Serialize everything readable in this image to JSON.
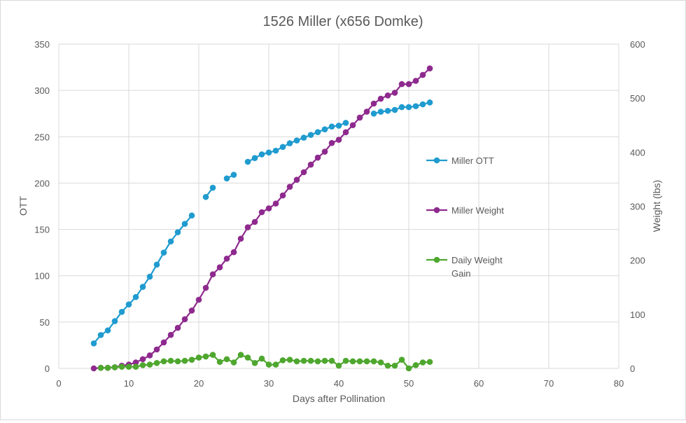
{
  "chart_data": {
    "type": "line",
    "title": "1526 Miller (x656 Domke)",
    "xlabel": "Days after Pollination",
    "ylabel": "OTT",
    "y2label": "Weight (lbs)",
    "xlim": [
      0,
      80
    ],
    "ylim": [
      0,
      350
    ],
    "y2lim": [
      0,
      600
    ],
    "xticks": [
      "0",
      "10",
      "20",
      "30",
      "40",
      "50",
      "60",
      "70",
      "80"
    ],
    "yticks": [
      "0",
      "50",
      "100",
      "150",
      "200",
      "250",
      "300",
      "350"
    ],
    "y2ticks": [
      "0",
      "100",
      "200",
      "300",
      "400",
      "500",
      "600"
    ],
    "grid": true,
    "legend_position": "right",
    "series": [
      {
        "name": "Miller OTT",
        "axis": "left",
        "color": "#1f9bcf",
        "points": [
          [
            5,
            27
          ],
          [
            6,
            36
          ],
          [
            7,
            41
          ],
          [
            8,
            51
          ],
          [
            9,
            61
          ],
          [
            10,
            69
          ],
          [
            11,
            77
          ],
          [
            12,
            88
          ],
          [
            13,
            99
          ],
          [
            14,
            112
          ],
          [
            15,
            125
          ],
          [
            16,
            137
          ],
          [
            17,
            147
          ],
          [
            18,
            156
          ],
          [
            19,
            165
          ],
          [
            20,
            null
          ],
          [
            21,
            185
          ],
          [
            22,
            195
          ],
          [
            23,
            null
          ],
          [
            24,
            205
          ],
          [
            25,
            209
          ],
          [
            26,
            null
          ],
          [
            27,
            223
          ],
          [
            28,
            227
          ],
          [
            29,
            231
          ],
          [
            30,
            233
          ],
          [
            31,
            235
          ],
          [
            32,
            239
          ],
          [
            33,
            243
          ],
          [
            34,
            246
          ],
          [
            35,
            249
          ],
          [
            36,
            252
          ],
          [
            37,
            255
          ],
          [
            38,
            258
          ],
          [
            39,
            261
          ],
          [
            40,
            262
          ],
          [
            41,
            265
          ],
          [
            42,
            null
          ],
          [
            43,
            null
          ],
          [
            44,
            null
          ],
          [
            45,
            275
          ],
          [
            46,
            277
          ],
          [
            47,
            278
          ],
          [
            48,
            279
          ],
          [
            49,
            282
          ],
          [
            50,
            282
          ],
          [
            51,
            283
          ],
          [
            52,
            285
          ],
          [
            53,
            287
          ]
        ]
      },
      {
        "name": "Miller Weight",
        "axis": "right",
        "color": "#8e2a8e",
        "points": [
          [
            5,
            0
          ],
          [
            6,
            1
          ],
          [
            7,
            1
          ],
          [
            8,
            2
          ],
          [
            9,
            5
          ],
          [
            10,
            7
          ],
          [
            11,
            11
          ],
          [
            12,
            17
          ],
          [
            13,
            24
          ],
          [
            14,
            35
          ],
          [
            15,
            48
          ],
          [
            16,
            62
          ],
          [
            17,
            75
          ],
          [
            18,
            91
          ],
          [
            19,
            107
          ],
          [
            20,
            127
          ],
          [
            21,
            149
          ],
          [
            22,
            174
          ],
          [
            23,
            187
          ],
          [
            24,
            203
          ],
          [
            25,
            215
          ],
          [
            26,
            240
          ],
          [
            27,
            261
          ],
          [
            28,
            271
          ],
          [
            29,
            289
          ],
          [
            30,
            296
          ],
          [
            31,
            305
          ],
          [
            32,
            320
          ],
          [
            33,
            336
          ],
          [
            34,
            349
          ],
          [
            35,
            363
          ],
          [
            36,
            377
          ],
          [
            37,
            390
          ],
          [
            38,
            401
          ],
          [
            39,
            417
          ],
          [
            40,
            423
          ],
          [
            41,
            437
          ],
          [
            42,
            450
          ],
          [
            43,
            464
          ],
          [
            44,
            475
          ],
          [
            45,
            490
          ],
          [
            46,
            499
          ],
          [
            47,
            505
          ],
          [
            48,
            510
          ],
          [
            49,
            526
          ],
          [
            50,
            526
          ],
          [
            51,
            532
          ],
          [
            52,
            543
          ],
          [
            53,
            555
          ]
        ]
      },
      {
        "name": "Daily Weight Gain",
        "axis": "right",
        "color": "#4ea72e",
        "points": [
          [
            6,
            1
          ],
          [
            7,
            1
          ],
          [
            8,
            2
          ],
          [
            9,
            3
          ],
          [
            10,
            3
          ],
          [
            11,
            3
          ],
          [
            12,
            6
          ],
          [
            13,
            7
          ],
          [
            14,
            10
          ],
          [
            15,
            13
          ],
          [
            16,
            14
          ],
          [
            17,
            13
          ],
          [
            18,
            14
          ],
          [
            19,
            16
          ],
          [
            20,
            20
          ],
          [
            21,
            22
          ],
          [
            22,
            25
          ],
          [
            23,
            12
          ],
          [
            24,
            17
          ],
          [
            25,
            11
          ],
          [
            26,
            25
          ],
          [
            27,
            20
          ],
          [
            28,
            10
          ],
          [
            29,
            18
          ],
          [
            30,
            7
          ],
          [
            31,
            7
          ],
          [
            32,
            15
          ],
          [
            33,
            16
          ],
          [
            34,
            13
          ],
          [
            35,
            14
          ],
          [
            36,
            14
          ],
          [
            37,
            13
          ],
          [
            38,
            14
          ],
          [
            39,
            14
          ],
          [
            40,
            5
          ],
          [
            41,
            14
          ],
          [
            42,
            13
          ],
          [
            43,
            13
          ],
          [
            44,
            13
          ],
          [
            45,
            13
          ],
          [
            46,
            11
          ],
          [
            47,
            5
          ],
          [
            48,
            5
          ],
          [
            49,
            16
          ],
          [
            50,
            0
          ],
          [
            51,
            6
          ],
          [
            52,
            11
          ],
          [
            53,
            12
          ]
        ]
      }
    ]
  },
  "legend": {
    "items": [
      {
        "label_lines": [
          "Miller OTT"
        ],
        "color": "#1f9bcf"
      },
      {
        "label_lines": [
          "Miller Weight"
        ],
        "color": "#8e2a8e"
      },
      {
        "label_lines": [
          "Daily Weight",
          "Gain"
        ],
        "color": "#4ea72e"
      }
    ]
  },
  "colors": {
    "text": "#595959",
    "grid": "#d9d9d9",
    "background": "#ffffff"
  }
}
